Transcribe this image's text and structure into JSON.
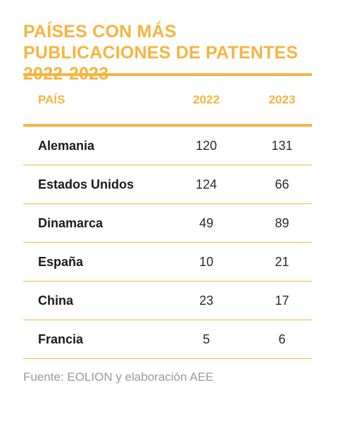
{
  "title": "PAÍSES CON MÁS PUBLICACIONES DE PATENTES 2022-2023",
  "colors": {
    "accent": "#f7b43f",
    "text": "#1a1a1a",
    "source": "#9a9a9a"
  },
  "chart_data": {
    "type": "table",
    "title": "PAÍSES CON MÁS PUBLICACIONES DE PATENTES 2022-2023",
    "columns": [
      "PAÍS",
      "2022",
      "2023"
    ],
    "rows": [
      [
        "Alemania",
        "120",
        "131"
      ],
      [
        "Estados Unidos",
        "124",
        "66"
      ],
      [
        "Dinamarca",
        "49",
        "89"
      ],
      [
        "España",
        "10",
        "21"
      ],
      [
        "China",
        "23",
        "17"
      ],
      [
        "Francia",
        "5",
        "6"
      ]
    ]
  },
  "source": "Fuente: EOLION y elaboración AEE"
}
